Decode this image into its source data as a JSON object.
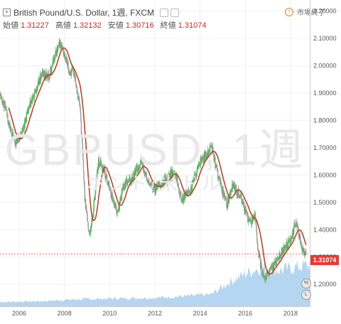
{
  "header": {
    "title": "British Pound/U.S. Dollar, 1週, FXCM",
    "ohlc": [
      {
        "label": "始値",
        "value": "1.31227"
      },
      {
        "label": "高値",
        "value": "1.32132"
      },
      {
        "label": "安値",
        "value": "1.30716"
      },
      {
        "label": "終値",
        "value": "1.31074"
      }
    ],
    "market_status": "市場終了"
  },
  "watermark": {
    "line1": "GBPUSD, 1週",
    "line2": "ポンド/米ドル"
  },
  "price_label": "1.31074",
  "colors": {
    "candle_up": "#4caf50",
    "candle_down": "#9e9e9e",
    "ma": "#b5462a",
    "volume": "#a7cfef",
    "price_tag": "#e53935"
  },
  "chart_data": {
    "type": "candlestick",
    "x_ticks": [
      "2006",
      "2008",
      "2010",
      "2012",
      "2014",
      "2016",
      "2018"
    ],
    "y_ticks": [
      "2.20000",
      "2.10000",
      "2.00000",
      "1.90000",
      "1.80000",
      "1.70000",
      "1.60000",
      "1.50000",
      "1.40000",
      "1.30000",
      "1.20000"
    ],
    "y_range": [
      1.12,
      2.24
    ],
    "x_range": [
      2005.15,
      2018.85
    ],
    "price_path": [
      [
        2005.2,
        1.89
      ],
      [
        2005.4,
        1.84
      ],
      [
        2005.6,
        1.77
      ],
      [
        2005.8,
        1.72
      ],
      [
        2006.0,
        1.74
      ],
      [
        2006.2,
        1.78
      ],
      [
        2006.5,
        1.86
      ],
      [
        2006.8,
        1.92
      ],
      [
        2007.0,
        1.97
      ],
      [
        2007.3,
        1.96
      ],
      [
        2007.6,
        2.04
      ],
      [
        2007.8,
        2.08
      ],
      [
        2007.95,
        2.05
      ],
      [
        2008.2,
        1.98
      ],
      [
        2008.45,
        1.97
      ],
      [
        2008.7,
        1.84
      ],
      [
        2008.9,
        1.52
      ],
      [
        2009.1,
        1.38
      ],
      [
        2009.25,
        1.45
      ],
      [
        2009.5,
        1.65
      ],
      [
        2009.75,
        1.62
      ],
      [
        2010.0,
        1.55
      ],
      [
        2010.35,
        1.46
      ],
      [
        2010.6,
        1.56
      ],
      [
        2010.9,
        1.58
      ],
      [
        2011.2,
        1.62
      ],
      [
        2011.4,
        1.65
      ],
      [
        2011.7,
        1.57
      ],
      [
        2011.95,
        1.55
      ],
      [
        2012.3,
        1.56
      ],
      [
        2012.6,
        1.6
      ],
      [
        2012.9,
        1.61
      ],
      [
        2013.2,
        1.51
      ],
      [
        2013.6,
        1.55
      ],
      [
        2013.95,
        1.64
      ],
      [
        2014.3,
        1.68
      ],
      [
        2014.5,
        1.71
      ],
      [
        2014.7,
        1.63
      ],
      [
        2014.95,
        1.55
      ],
      [
        2015.2,
        1.49
      ],
      [
        2015.45,
        1.56
      ],
      [
        2015.8,
        1.52
      ],
      [
        2015.95,
        1.48
      ],
      [
        2016.2,
        1.42
      ],
      [
        2016.45,
        1.45
      ],
      [
        2016.55,
        1.33
      ],
      [
        2016.75,
        1.24
      ],
      [
        2016.9,
        1.23
      ],
      [
        2017.1,
        1.25
      ],
      [
        2017.4,
        1.29
      ],
      [
        2017.7,
        1.33
      ],
      [
        2017.95,
        1.35
      ],
      [
        2018.2,
        1.42
      ],
      [
        2018.3,
        1.41
      ],
      [
        2018.55,
        1.32
      ],
      [
        2018.7,
        1.31
      ]
    ],
    "volume_path": [
      [
        2005.2,
        0.05
      ],
      [
        2007.0,
        0.06
      ],
      [
        2008.5,
        0.08
      ],
      [
        2010.0,
        0.09
      ],
      [
        2012.0,
        0.1
      ],
      [
        2013.5,
        0.12
      ],
      [
        2014.5,
        0.14
      ],
      [
        2015.3,
        0.28
      ],
      [
        2016.0,
        0.38
      ],
      [
        2016.6,
        0.45
      ],
      [
        2017.5,
        0.42
      ],
      [
        2018.7,
        0.48
      ]
    ]
  }
}
